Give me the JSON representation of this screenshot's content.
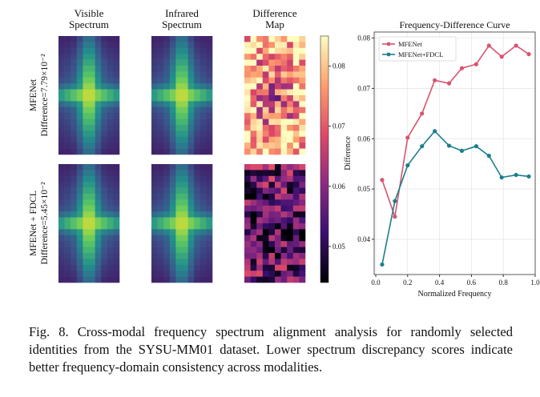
{
  "columns": [
    [
      "Visible",
      "Spectrum"
    ],
    [
      "Infrared",
      "Spectrum"
    ],
    [
      "Difference",
      "Map"
    ]
  ],
  "rows": [
    [
      "MFENet",
      "Difference=7.79×10⁻²"
    ],
    [
      "MFENet + FDCL",
      "Difference=5.45×10⁻²"
    ]
  ],
  "colorbar": {
    "lim": [
      0.044,
      0.085
    ],
    "ticks": [
      0.05,
      0.06,
      0.07,
      0.08
    ]
  },
  "chart_data": {
    "type": "line",
    "title": "Frequency-Difference Curve",
    "x_label": "Normalized Frequency",
    "y_label": "Difference",
    "x": [
      0.04,
      0.12,
      0.2,
      0.29,
      0.37,
      0.46,
      0.54,
      0.63,
      0.71,
      0.79,
      0.88,
      0.96
    ],
    "series": [
      {
        "name": "MFENet",
        "color": "#d9546e",
        "values": [
          0.0518,
          0.0445,
          0.0602,
          0.065,
          0.0716,
          0.071,
          0.074,
          0.0748,
          0.0785,
          0.0763,
          0.0785,
          0.0768
        ]
      },
      {
        "name": "MFENet+FDCL",
        "color": "#1b7f8c",
        "values": [
          0.035,
          0.0476,
          0.0547,
          0.0585,
          0.0615,
          0.0586,
          0.0576,
          0.0585,
          0.0566,
          0.0523,
          0.0528,
          0.0525
        ]
      }
    ],
    "xlim": [
      -0.01,
      1.0
    ],
    "ylim": [
      0.033,
      0.0812
    ],
    "xticks": [
      {
        "value": 0,
        "label": "0.0"
      },
      0.2,
      0.4,
      0.6,
      0.8,
      {
        "value": 1,
        "label": "1.0"
      }
    ],
    "yticks": [
      0.04,
      0.05,
      0.06,
      0.07,
      0.08
    ],
    "grid": true,
    "legend": "upper left"
  },
  "caption": "Fig. 8.  Cross-modal frequency spectrum alignment analysis for randomly selected identities from the SYSU-MM01 dataset. Lower spectrum discrepancy scores indicate better frequency-domain consistency across modalities."
}
